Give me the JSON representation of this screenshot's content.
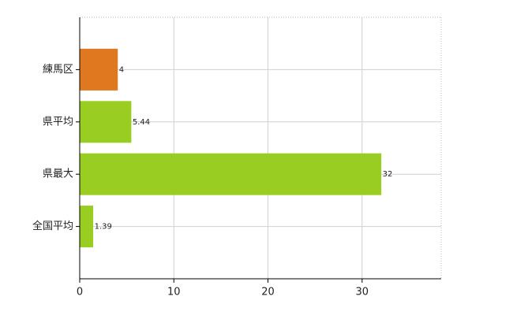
{
  "chart_data": {
    "type": "bar",
    "orientation": "horizontal",
    "categories": [
      "練馬区",
      "県平均",
      "県最大",
      "全国平均"
    ],
    "values": [
      4,
      5.44,
      32,
      1.39
    ],
    "colors": [
      "#e07820",
      "#9acd22",
      "#9acd22",
      "#9acd22"
    ],
    "xlim": [
      0,
      38.4
    ],
    "xticks": [
      0,
      10,
      20,
      30
    ],
    "grid": true
  }
}
